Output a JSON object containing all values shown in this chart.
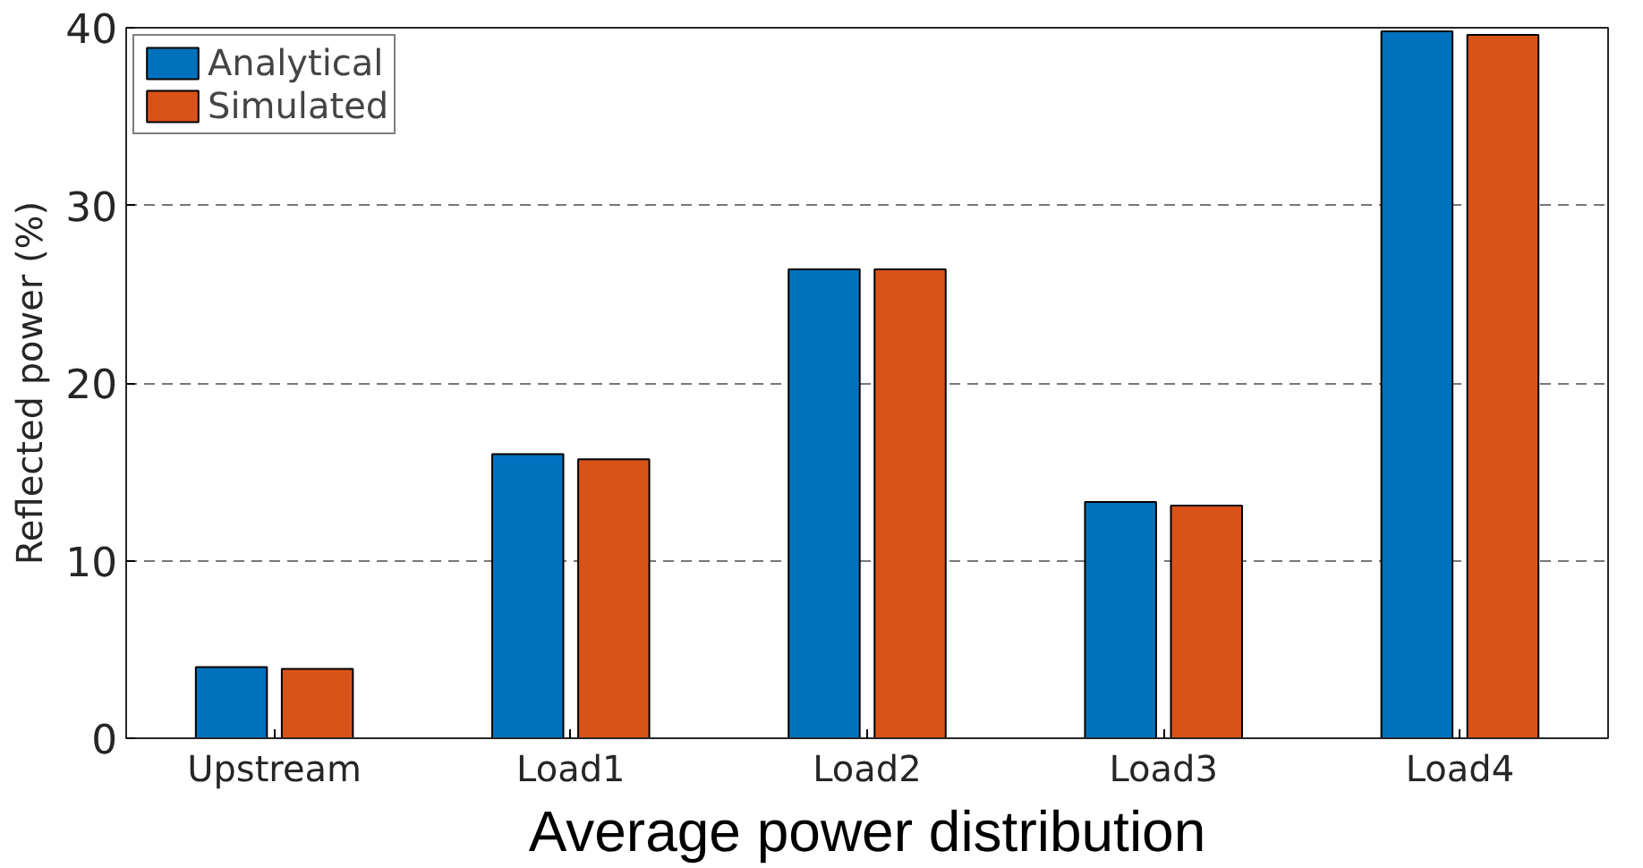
{
  "chart_data": {
    "type": "bar",
    "xlabel": "Average power distribution",
    "ylabel": "Reflected power (%)",
    "categories": [
      "Upstream",
      "Load1",
      "Load2",
      "Load3",
      "Load4"
    ],
    "series": [
      {
        "name": "Analytical",
        "color": "#0072bd",
        "values": [
          4.0,
          16.0,
          26.4,
          13.3,
          39.8
        ]
      },
      {
        "name": "Simulated",
        "color": "#d95319",
        "values": [
          3.9,
          15.7,
          26.4,
          13.1,
          39.6
        ]
      }
    ],
    "ylim": [
      0,
      40
    ],
    "yticks": [
      0,
      10,
      20,
      30,
      40
    ],
    "grid": "y",
    "legend": "top left"
  }
}
